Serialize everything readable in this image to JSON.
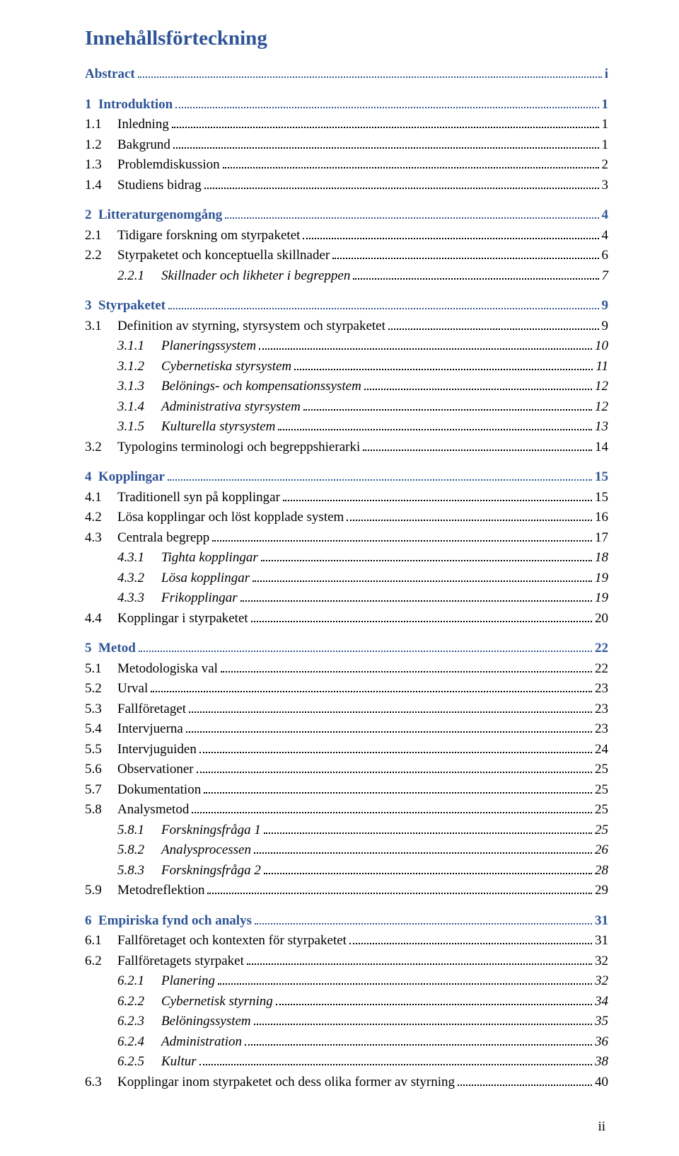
{
  "title": "Innehållsförteckning",
  "footer_page": "ii",
  "entries": [
    {
      "kind": "section",
      "num": "",
      "text": "Abstract",
      "page": "i"
    },
    {
      "kind": "section",
      "num": "1",
      "text": "Introduktion",
      "page": "1"
    },
    {
      "kind": "l1",
      "num": "1.1",
      "text": "Inledning",
      "page": "1"
    },
    {
      "kind": "l1",
      "num": "1.2",
      "text": "Bakgrund",
      "page": "1"
    },
    {
      "kind": "l1",
      "num": "1.3",
      "text": "Problemdiskussion",
      "page": "2"
    },
    {
      "kind": "l1",
      "num": "1.4",
      "text": "Studiens bidrag",
      "page": "3"
    },
    {
      "kind": "section",
      "num": "2",
      "text": "Litteraturgenomgång",
      "page": "4"
    },
    {
      "kind": "l1",
      "num": "2.1",
      "text": "Tidigare forskning om styrpaketet",
      "page": "4"
    },
    {
      "kind": "l1",
      "num": "2.2",
      "text": "Styrpaketet och konceptuella skillnader",
      "page": "6"
    },
    {
      "kind": "l2",
      "num": "2.2.1",
      "text": "Skillnader och likheter i begreppen",
      "page": "7"
    },
    {
      "kind": "section",
      "num": "3",
      "text": "Styrpaketet",
      "page": "9"
    },
    {
      "kind": "l1",
      "num": "3.1",
      "text": "Definition av styrning, styrsystem och styrpaketet",
      "page": "9"
    },
    {
      "kind": "l2",
      "num": "3.1.1",
      "text": "Planeringssystem",
      "page": "10"
    },
    {
      "kind": "l2",
      "num": "3.1.2",
      "text": "Cybernetiska styrsystem",
      "page": "11"
    },
    {
      "kind": "l2",
      "num": "3.1.3",
      "text": "Belönings- och kompensationssystem",
      "page": "12"
    },
    {
      "kind": "l2",
      "num": "3.1.4",
      "text": "Administrativa styrsystem",
      "page": "12"
    },
    {
      "kind": "l2",
      "num": "3.1.5",
      "text": "Kulturella styrsystem",
      "page": "13"
    },
    {
      "kind": "l1",
      "num": "3.2",
      "text": "Typologins terminologi och begreppshierarki",
      "page": "14"
    },
    {
      "kind": "section",
      "num": "4",
      "text": "Kopplingar",
      "page": "15"
    },
    {
      "kind": "l1",
      "num": "4.1",
      "text": "Traditionell syn på kopplingar",
      "page": "15"
    },
    {
      "kind": "l1",
      "num": "4.2",
      "text": "Lösa kopplingar och löst kopplade system",
      "page": "16"
    },
    {
      "kind": "l1",
      "num": "4.3",
      "text": "Centrala begrepp",
      "page": "17"
    },
    {
      "kind": "l2",
      "num": "4.3.1",
      "text": "Tighta kopplingar",
      "page": "18"
    },
    {
      "kind": "l2",
      "num": "4.3.2",
      "text": "Lösa kopplingar",
      "page": "19"
    },
    {
      "kind": "l2",
      "num": "4.3.3",
      "text": "Frikopplingar",
      "page": "19"
    },
    {
      "kind": "l1",
      "num": "4.4",
      "text": "Kopplingar i styrpaketet",
      "page": "20"
    },
    {
      "kind": "section",
      "num": "5",
      "text": "Metod",
      "page": "22"
    },
    {
      "kind": "l1",
      "num": "5.1",
      "text": "Metodologiska val",
      "page": "22"
    },
    {
      "kind": "l1",
      "num": "5.2",
      "text": "Urval",
      "page": "23"
    },
    {
      "kind": "l1",
      "num": "5.3",
      "text": "Fallföretaget",
      "page": "23"
    },
    {
      "kind": "l1",
      "num": "5.4",
      "text": "Intervjuerna",
      "page": "23"
    },
    {
      "kind": "l1",
      "num": "5.5",
      "text": "Intervjuguiden",
      "page": "24"
    },
    {
      "kind": "l1",
      "num": "5.6",
      "text": "Observationer",
      "page": "25"
    },
    {
      "kind": "l1",
      "num": "5.7",
      "text": "Dokumentation",
      "page": "25"
    },
    {
      "kind": "l1",
      "num": "5.8",
      "text": "Analysmetod",
      "page": "25"
    },
    {
      "kind": "l2",
      "num": "5.8.1",
      "text": "Forskningsfråga 1",
      "page": "25"
    },
    {
      "kind": "l2",
      "num": "5.8.2",
      "text": "Analysprocessen",
      "page": "26"
    },
    {
      "kind": "l2",
      "num": "5.8.3",
      "text": "Forskningsfråga 2",
      "page": "28"
    },
    {
      "kind": "l1",
      "num": "5.9",
      "text": "Metodreflektion",
      "page": "29"
    },
    {
      "kind": "section",
      "num": "6",
      "text": "Empiriska fynd och analys",
      "page": "31"
    },
    {
      "kind": "l1",
      "num": "6.1",
      "text": "Fallföretaget och kontexten för styrpaketet",
      "page": "31"
    },
    {
      "kind": "l1",
      "num": "6.2",
      "text": "Fallföretagets styrpaket",
      "page": "32"
    },
    {
      "kind": "l2",
      "num": "6.2.1",
      "text": "Planering",
      "page": "32"
    },
    {
      "kind": "l2",
      "num": "6.2.2",
      "text": "Cybernetisk styrning",
      "page": "34"
    },
    {
      "kind": "l2",
      "num": "6.2.3",
      "text": "Belöningssystem",
      "page": "35"
    },
    {
      "kind": "l2",
      "num": "6.2.4",
      "text": "Administration",
      "page": "36"
    },
    {
      "kind": "l2",
      "num": "6.2.5",
      "text": "Kultur",
      "page": "38"
    },
    {
      "kind": "l1",
      "num": "6.3",
      "text": "Kopplingar inom styrpaketet och dess olika former av styrning",
      "page": "40"
    }
  ]
}
